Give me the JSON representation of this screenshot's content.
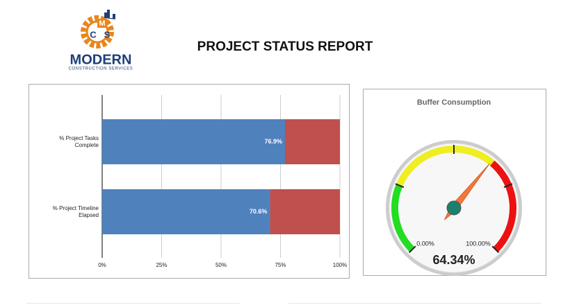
{
  "header": {
    "title": "PROJECT STATUS REPORT",
    "logo": {
      "letters": [
        "M",
        "C",
        "S"
      ],
      "name": "MODERN",
      "tagline": "CONSTRUCTION SERVICES"
    }
  },
  "chart_data": [
    {
      "type": "bar",
      "orientation": "horizontal",
      "stacked": true,
      "categories": [
        "% Project Tasks Complete",
        "% Project Timeline Elapsed"
      ],
      "series": [
        {
          "color": "#4f81bd",
          "values": [
            76.9,
            70.6
          ],
          "value_labels": [
            "76.9%",
            "70.6%"
          ]
        },
        {
          "color": "#c0504d",
          "values": [
            23.1,
            29.4
          ]
        }
      ],
      "xlim": [
        0,
        100
      ],
      "xticks": [
        {
          "value": 0,
          "label": "0%"
        },
        {
          "value": 25,
          "label": "25%"
        },
        {
          "value": 50,
          "label": "50%"
        },
        {
          "value": 75,
          "label": "75%"
        },
        {
          "value": 100,
          "label": "100%"
        }
      ],
      "grid": true
    },
    {
      "type": "gauge",
      "title": "Buffer Consumption",
      "value": 64.34,
      "value_label": "64.34%",
      "range": [
        0,
        100
      ],
      "range_labels": [
        "0.00%",
        "100.00%"
      ],
      "ticks": [
        0,
        25,
        50,
        75,
        100
      ],
      "bands": [
        {
          "from": 0,
          "to": 25,
          "color": "#22dd22"
        },
        {
          "from": 25,
          "to": 65,
          "color": "#eeee22"
        },
        {
          "from": 65,
          "to": 100,
          "color": "#ee1111"
        }
      ],
      "needle_color": "#f4763b"
    }
  ]
}
